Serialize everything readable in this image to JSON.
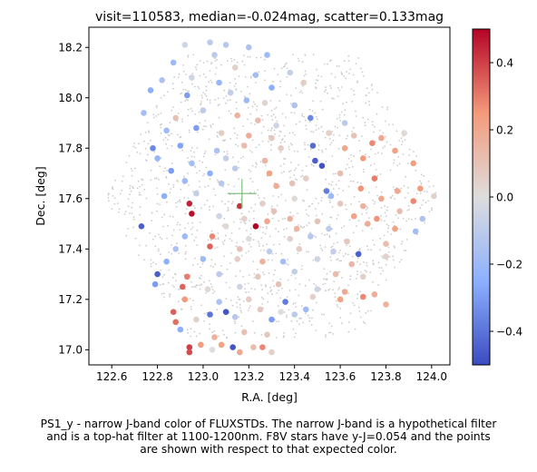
{
  "chart_data": {
    "type": "scatter",
    "title": "visit=110583, median=-0.024mag, scatter=0.133mag",
    "xlabel": "R.A. [deg]",
    "ylabel": "Dec. [deg]",
    "xlim": [
      122.5,
      124.08
    ],
    "ylim": [
      16.94,
      18.28
    ],
    "xticks": [
      "122.6",
      "122.8",
      "123.0",
      "123.2",
      "123.4",
      "123.6",
      "123.8",
      "124.0"
    ],
    "yticks": [
      "17.0",
      "17.2",
      "17.4",
      "17.6",
      "17.8",
      "18.0",
      "18.2"
    ],
    "colorbar": {
      "colormap": "coolwarm",
      "vmin": -0.5,
      "vmax": 0.5,
      "ticks": [
        "0.4",
        "0.2",
        "0.0",
        "−0.2",
        "−0.4"
      ]
    },
    "grid": false,
    "field_center_marker": {
      "ra": 123.17,
      "dec": 17.62
    },
    "background_stars_color": "#cccccc",
    "fluxstd_points": [
      {
        "ra": 122.92,
        "dec": 18.21,
        "c": -0.05
      },
      {
        "ra": 123.03,
        "dec": 18.22,
        "c": -0.1
      },
      {
        "ra": 123.1,
        "dec": 18.21,
        "c": -0.12
      },
      {
        "ra": 123.2,
        "dec": 18.2,
        "c": -0.15
      },
      {
        "ra": 122.87,
        "dec": 18.14,
        "c": -0.2
      },
      {
        "ra": 123.05,
        "dec": 18.17,
        "c": -0.1
      },
      {
        "ra": 123.14,
        "dec": 18.12,
        "c": 0.05
      },
      {
        "ra": 123.28,
        "dec": 18.17,
        "c": -0.2
      },
      {
        "ra": 123.38,
        "dec": 18.1,
        "c": -0.08
      },
      {
        "ra": 122.82,
        "dec": 18.07,
        "c": -0.15
      },
      {
        "ra": 122.95,
        "dec": 18.08,
        "c": -0.05
      },
      {
        "ra": 123.07,
        "dec": 18.06,
        "c": -0.22
      },
      {
        "ra": 123.23,
        "dec": 18.09,
        "c": -0.18
      },
      {
        "ra": 123.3,
        "dec": 18.04,
        "c": -0.25
      },
      {
        "ra": 123.44,
        "dec": 18.06,
        "c": 0.06
      },
      {
        "ra": 122.77,
        "dec": 18.03,
        "c": -0.25
      },
      {
        "ra": 122.93,
        "dec": 18.01,
        "c": -0.3
      },
      {
        "ra": 123.12,
        "dec": 18.02,
        "c": -0.08
      },
      {
        "ra": 123.19,
        "dec": 17.99,
        "c": -0.2
      },
      {
        "ra": 123.27,
        "dec": 17.98,
        "c": 0.04
      },
      {
        "ra": 123.4,
        "dec": 17.97,
        "c": -0.15
      },
      {
        "ra": 122.74,
        "dec": 17.94,
        "c": -0.18
      },
      {
        "ra": 122.88,
        "dec": 17.92,
        "c": 0.1
      },
      {
        "ra": 123.0,
        "dec": 17.95,
        "c": -0.1
      },
      {
        "ra": 123.15,
        "dec": 17.93,
        "c": 0.15
      },
      {
        "ra": 123.24,
        "dec": 17.91,
        "c": 0.12
      },
      {
        "ra": 123.32,
        "dec": 17.89,
        "c": -0.05
      },
      {
        "ra": 123.47,
        "dec": 17.92,
        "c": -0.35
      },
      {
        "ra": 123.62,
        "dec": 17.9,
        "c": -0.1
      },
      {
        "ra": 122.84,
        "dec": 17.87,
        "c": -0.2
      },
      {
        "ra": 122.97,
        "dec": 17.88,
        "c": -0.3
      },
      {
        "ra": 123.08,
        "dec": 17.86,
        "c": 0.06
      },
      {
        "ra": 123.2,
        "dec": 17.85,
        "c": 0.18
      },
      {
        "ra": 123.3,
        "dec": 17.84,
        "c": 0.08
      },
      {
        "ra": 123.55,
        "dec": 17.86,
        "c": 0.05
      },
      {
        "ra": 123.66,
        "dec": 17.85,
        "c": 0.1
      },
      {
        "ra": 123.78,
        "dec": 17.84,
        "c": 0.2
      },
      {
        "ra": 123.88,
        "dec": 17.86,
        "c": 0.02
      },
      {
        "ra": 122.78,
        "dec": 17.8,
        "c": -0.35
      },
      {
        "ra": 122.9,
        "dec": 17.81,
        "c": -0.28
      },
      {
        "ra": 123.06,
        "dec": 17.79,
        "c": -0.15
      },
      {
        "ra": 123.18,
        "dec": 17.81,
        "c": 0.12
      },
      {
        "ra": 123.34,
        "dec": 17.8,
        "c": 0.06
      },
      {
        "ra": 123.48,
        "dec": 17.81,
        "c": -0.42
      },
      {
        "ra": 123.62,
        "dec": 17.8,
        "c": 0.2
      },
      {
        "ra": 123.74,
        "dec": 17.82,
        "c": 0.28
      },
      {
        "ra": 123.84,
        "dec": 17.79,
        "c": 0.22
      },
      {
        "ra": 122.8,
        "dec": 17.76,
        "c": -0.22
      },
      {
        "ra": 122.95,
        "dec": 17.74,
        "c": -0.18
      },
      {
        "ra": 123.1,
        "dec": 17.76,
        "c": -0.08
      },
      {
        "ra": 123.27,
        "dec": 17.75,
        "c": 0.15
      },
      {
        "ra": 123.49,
        "dec": 17.75,
        "c": -0.45
      },
      {
        "ra": 123.52,
        "dec": 17.73,
        "c": -0.48
      },
      {
        "ra": 123.7,
        "dec": 17.76,
        "c": 0.25
      },
      {
        "ra": 123.92,
        "dec": 17.74,
        "c": 0.24
      },
      {
        "ra": 122.86,
        "dec": 17.71,
        "c": -0.3
      },
      {
        "ra": 123.03,
        "dec": 17.7,
        "c": -0.25
      },
      {
        "ra": 123.14,
        "dec": 17.72,
        "c": -0.1
      },
      {
        "ra": 123.29,
        "dec": 17.7,
        "c": 0.22
      },
      {
        "ra": 123.45,
        "dec": 17.68,
        "c": 0.06
      },
      {
        "ra": 123.6,
        "dec": 17.7,
        "c": 0.12
      },
      {
        "ra": 123.75,
        "dec": 17.68,
        "c": 0.3
      },
      {
        "ra": 122.92,
        "dec": 17.67,
        "c": -0.2
      },
      {
        "ra": 123.08,
        "dec": 17.66,
        "c": -0.12
      },
      {
        "ra": 123.32,
        "dec": 17.65,
        "c": 0.18
      },
      {
        "ra": 123.39,
        "dec": 17.66,
        "c": 0.1
      },
      {
        "ra": 123.69,
        "dec": 17.64,
        "c": 0.26
      },
      {
        "ra": 123.85,
        "dec": 17.63,
        "c": 0.2
      },
      {
        "ra": 123.95,
        "dec": 17.64,
        "c": 0.24
      },
      {
        "ra": 122.83,
        "dec": 17.61,
        "c": -0.25
      },
      {
        "ra": 122.97,
        "dec": 17.62,
        "c": -0.08
      },
      {
        "ra": 123.4,
        "dec": 17.6,
        "c": 0.02
      },
      {
        "ra": 123.54,
        "dec": 17.63,
        "c": -0.38
      },
      {
        "ra": 123.56,
        "dec": 17.61,
        "c": -0.2
      },
      {
        "ra": 123.78,
        "dec": 17.6,
        "c": 0.2
      },
      {
        "ra": 123.92,
        "dec": 17.59,
        "c": 0.28
      },
      {
        "ra": 124.01,
        "dec": 17.61,
        "c": 0.05
      },
      {
        "ra": 122.94,
        "dec": 17.58,
        "c": 0.45
      },
      {
        "ra": 123.16,
        "dec": 17.57,
        "c": 0.42
      },
      {
        "ra": 123.26,
        "dec": 17.58,
        "c": 0.06
      },
      {
        "ra": 123.31,
        "dec": 17.55,
        "c": 0.1
      },
      {
        "ra": 123.6,
        "dec": 17.58,
        "c": 0.08
      },
      {
        "ra": 123.7,
        "dec": 17.57,
        "c": 0.16
      },
      {
        "ra": 123.86,
        "dec": 17.55,
        "c": 0.12
      },
      {
        "ra": 122.95,
        "dec": 17.54,
        "c": 0.48
      },
      {
        "ra": 123.07,
        "dec": 17.53,
        "c": -0.05
      },
      {
        "ra": 123.18,
        "dec": 17.52,
        "c": 0.05
      },
      {
        "ra": 123.28,
        "dec": 17.51,
        "c": 0.2
      },
      {
        "ra": 123.38,
        "dec": 17.52,
        "c": 0.16
      },
      {
        "ra": 123.5,
        "dec": 17.51,
        "c": 0.1
      },
      {
        "ra": 123.66,
        "dec": 17.53,
        "c": 0.22
      },
      {
        "ra": 123.76,
        "dec": 17.52,
        "c": 0.26
      },
      {
        "ra": 123.96,
        "dec": 17.52,
        "c": -0.15
      },
      {
        "ra": 122.73,
        "dec": 17.49,
        "c": -0.45
      },
      {
        "ra": 123.1,
        "dec": 17.49,
        "c": 0.02
      },
      {
        "ra": 123.23,
        "dec": 17.49,
        "c": 0.5
      },
      {
        "ra": 123.41,
        "dec": 17.48,
        "c": 0.15
      },
      {
        "ra": 123.55,
        "dec": 17.48,
        "c": -0.1
      },
      {
        "ra": 123.72,
        "dec": 17.5,
        "c": 0.18
      },
      {
        "ra": 123.84,
        "dec": 17.48,
        "c": 0.22
      },
      {
        "ra": 123.93,
        "dec": 17.47,
        "c": -0.18
      },
      {
        "ra": 122.92,
        "dec": 17.45,
        "c": -0.2
      },
      {
        "ra": 123.04,
        "dec": 17.45,
        "c": 0.28
      },
      {
        "ra": 123.2,
        "dec": 17.44,
        "c": 0.0
      },
      {
        "ra": 123.38,
        "dec": 17.44,
        "c": 0.04
      },
      {
        "ra": 123.47,
        "dec": 17.45,
        "c": -0.12
      },
      {
        "ra": 123.63,
        "dec": 17.43,
        "c": 0.08
      },
      {
        "ra": 123.8,
        "dec": 17.42,
        "c": 0.12
      },
      {
        "ra": 122.88,
        "dec": 17.4,
        "c": -0.15
      },
      {
        "ra": 123.03,
        "dec": 17.41,
        "c": 0.34
      },
      {
        "ra": 123.16,
        "dec": 17.4,
        "c": 0.1
      },
      {
        "ra": 123.29,
        "dec": 17.39,
        "c": -0.1
      },
      {
        "ra": 123.42,
        "dec": 17.4,
        "c": 0.06
      },
      {
        "ra": 123.57,
        "dec": 17.39,
        "c": -0.08
      },
      {
        "ra": 123.68,
        "dec": 17.38,
        "c": -0.45
      },
      {
        "ra": 123.8,
        "dec": 17.37,
        "c": 0.04
      },
      {
        "ra": 122.84,
        "dec": 17.35,
        "c": -0.25
      },
      {
        "ra": 123.0,
        "dec": 17.36,
        "c": -0.2
      },
      {
        "ra": 123.15,
        "dec": 17.36,
        "c": 0.06
      },
      {
        "ra": 123.26,
        "dec": 17.35,
        "c": 0.16
      },
      {
        "ra": 123.35,
        "dec": 17.35,
        "c": -0.18
      },
      {
        "ra": 123.5,
        "dec": 17.36,
        "c": -0.05
      },
      {
        "ra": 123.65,
        "dec": 17.34,
        "c": 0.14
      },
      {
        "ra": 122.8,
        "dec": 17.3,
        "c": -0.45
      },
      {
        "ra": 122.93,
        "dec": 17.29,
        "c": 0.3
      },
      {
        "ra": 123.07,
        "dec": 17.3,
        "c": -0.1
      },
      {
        "ra": 123.24,
        "dec": 17.29,
        "c": 0.08
      },
      {
        "ra": 123.4,
        "dec": 17.31,
        "c": -0.08
      },
      {
        "ra": 123.58,
        "dec": 17.3,
        "c": 0.12
      },
      {
        "ra": 123.7,
        "dec": 17.29,
        "c": 0.05
      },
      {
        "ra": 122.79,
        "dec": 17.26,
        "c": -0.3
      },
      {
        "ra": 122.91,
        "dec": 17.25,
        "c": 0.34
      },
      {
        "ra": 123.02,
        "dec": 17.24,
        "c": 0.02
      },
      {
        "ra": 123.16,
        "dec": 17.25,
        "c": -0.05
      },
      {
        "ra": 123.33,
        "dec": 17.26,
        "c": 0.1
      },
      {
        "ra": 123.5,
        "dec": 17.24,
        "c": -0.05
      },
      {
        "ra": 123.62,
        "dec": 17.23,
        "c": 0.2
      },
      {
        "ra": 123.75,
        "dec": 17.22,
        "c": 0.18
      },
      {
        "ra": 122.92,
        "dec": 17.2,
        "c": 0.25
      },
      {
        "ra": 123.07,
        "dec": 17.19,
        "c": -0.15
      },
      {
        "ra": 123.2,
        "dec": 17.2,
        "c": 0.06
      },
      {
        "ra": 123.36,
        "dec": 17.19,
        "c": -0.38
      },
      {
        "ra": 123.48,
        "dec": 17.21,
        "c": 0.05
      },
      {
        "ra": 123.6,
        "dec": 17.2,
        "c": 0.22
      },
      {
        "ra": 123.7,
        "dec": 17.21,
        "c": 0.28
      },
      {
        "ra": 123.8,
        "dec": 17.18,
        "c": 0.16
      },
      {
        "ra": 122.87,
        "dec": 17.15,
        "c": 0.35
      },
      {
        "ra": 123.03,
        "dec": 17.14,
        "c": -0.4
      },
      {
        "ra": 123.1,
        "dec": 17.15,
        "c": -0.48
      },
      {
        "ra": 123.25,
        "dec": 17.16,
        "c": 0.08
      },
      {
        "ra": 123.34,
        "dec": 17.15,
        "c": 0.0
      },
      {
        "ra": 123.45,
        "dec": 17.16,
        "c": -0.2
      },
      {
        "ra": 122.88,
        "dec": 17.11,
        "c": 0.32
      },
      {
        "ra": 122.97,
        "dec": 17.12,
        "c": 0.05
      },
      {
        "ra": 123.14,
        "dec": 17.13,
        "c": -0.12
      },
      {
        "ra": 123.3,
        "dec": 17.12,
        "c": -0.3
      },
      {
        "ra": 123.4,
        "dec": 17.14,
        "c": -0.1
      },
      {
        "ra": 122.9,
        "dec": 17.08,
        "c": -0.25
      },
      {
        "ra": 123.05,
        "dec": 17.05,
        "c": 0.16
      },
      {
        "ra": 123.18,
        "dec": 17.07,
        "c": 0.1
      },
      {
        "ra": 123.28,
        "dec": 17.06,
        "c": 0.08
      },
      {
        "ra": 122.94,
        "dec": 17.01,
        "c": 0.4
      },
      {
        "ra": 122.99,
        "dec": 17.02,
        "c": 0.24
      },
      {
        "ra": 123.08,
        "dec": 17.02,
        "c": 0.22
      },
      {
        "ra": 123.13,
        "dec": 17.01,
        "c": -0.48
      },
      {
        "ra": 123.22,
        "dec": 17.01,
        "c": 0.12
      },
      {
        "ra": 123.26,
        "dec": 17.01,
        "c": 0.28
      },
      {
        "ra": 122.94,
        "dec": 16.99,
        "c": 0.38
      },
      {
        "ra": 123.16,
        "dec": 16.99,
        "c": 0.2
      },
      {
        "ra": 123.3,
        "dec": 16.99,
        "c": 0.05
      },
      {
        "ra": 123.04,
        "dec": 17.0,
        "c": 0.0
      }
    ]
  },
  "caption": {
    "line1": "PS1_y - narrow J-band color of FLUXSTDs. The narrow J-band is a hypothetical filter",
    "line2": "and is a top-hat filter at 1100-1200nm. F8V stars have y-J=0.054 and the points",
    "line3": "are shown with respect to that expected color."
  }
}
